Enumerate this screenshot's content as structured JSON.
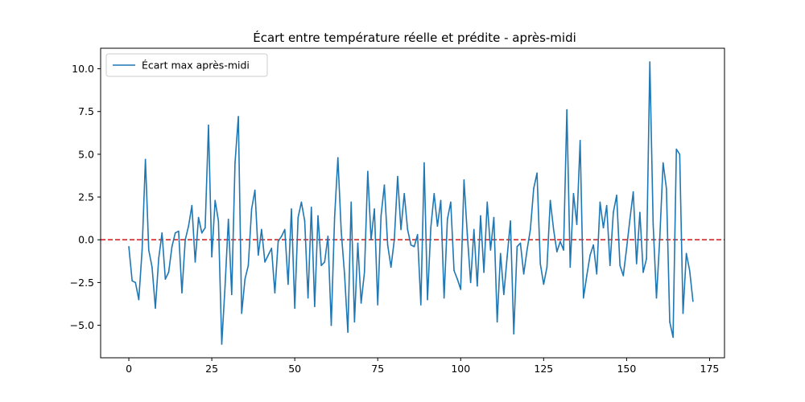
{
  "chart_data": {
    "type": "line",
    "title": "Écart entre température réelle et prédite - après-midi",
    "xlabel": "",
    "ylabel": "",
    "xlim": [
      -8.5,
      179.5
    ],
    "ylim": [
      -6.9,
      11.2
    ],
    "xticks": [
      0,
      25,
      50,
      75,
      100,
      125,
      150,
      175
    ],
    "xtick_labels": [
      "0",
      "25",
      "50",
      "75",
      "100",
      "125",
      "150",
      "175"
    ],
    "yticks": [
      -5.0,
      -2.5,
      0.0,
      2.5,
      5.0,
      7.5,
      10.0
    ],
    "ytick_labels": [
      "−5.0",
      "−2.5",
      "0.0",
      "2.5",
      "5.0",
      "7.5",
      "10.0"
    ],
    "legend": {
      "position": "top-left",
      "entries": [
        "Écart max après-midi"
      ]
    },
    "reference_line": {
      "y": 0.0,
      "style": "dashed",
      "color": "#d62728"
    },
    "series": [
      {
        "name": "Écart max après-midi",
        "color": "#1f77b4",
        "values": [
          -0.4,
          -2.4,
          -2.5,
          -3.5,
          -0.6,
          4.7,
          -0.6,
          -1.6,
          -4.0,
          -1.1,
          0.4,
          -2.3,
          -1.9,
          -0.4,
          0.4,
          0.5,
          -3.1,
          0.0,
          0.8,
          2.0,
          -1.3,
          1.3,
          0.4,
          0.7,
          6.7,
          -1.0,
          2.3,
          1.1,
          -6.1,
          -2.7,
          1.2,
          -3.2,
          4.5,
          7.2,
          -4.3,
          -2.3,
          -1.5,
          1.8,
          2.9,
          -0.9,
          0.6,
          -1.3,
          -0.9,
          -0.5,
          -3.1,
          -0.1,
          0.2,
          0.6,
          -2.6,
          1.8,
          -4.0,
          1.3,
          2.2,
          1.1,
          -3.4,
          1.9,
          -3.9,
          1.4,
          -1.5,
          -1.3,
          0.2,
          -5.0,
          1.3,
          4.8,
          0.5,
          -2.0,
          -5.4,
          2.2,
          -4.8,
          -0.2,
          -3.7,
          -1.9,
          4.0,
          0.0,
          1.8,
          -3.8,
          1.4,
          3.2,
          -0.3,
          -1.6,
          0.0,
          3.7,
          0.6,
          2.7,
          0.6,
          -0.3,
          -0.4,
          0.3,
          -3.8,
          4.5,
          -3.5,
          0.7,
          2.7,
          0.8,
          2.3,
          -3.4,
          1.2,
          2.2,
          -1.8,
          -2.3,
          -2.9,
          3.5,
          0.3,
          -2.5,
          0.6,
          -2.7,
          1.4,
          -1.9,
          2.2,
          -0.6,
          1.3,
          -4.8,
          -0.8,
          -3.2,
          -1.0,
          1.1,
          -5.5,
          -0.4,
          -0.2,
          -2.0,
          -0.6,
          0.6,
          3.0,
          3.9,
          -1.4,
          -2.6,
          -1.6,
          2.3,
          0.6,
          -0.7,
          -0.1,
          -0.6,
          7.6,
          -1.6,
          2.7,
          0.9,
          5.8,
          -3.4,
          -2.1,
          -0.9,
          -0.3,
          -2.0,
          2.2,
          0.7,
          2.0,
          -1.5,
          1.6,
          2.6,
          -1.5,
          -2.1,
          -0.5,
          1.2,
          2.8,
          -1.4,
          1.6,
          -1.9,
          -1.1,
          10.4,
          0.9,
          -3.4,
          0.1,
          4.5,
          3.0,
          -4.8,
          -5.7,
          5.3,
          5.0,
          -4.3,
          -0.8,
          -1.8,
          -3.6
        ]
      }
    ]
  }
}
